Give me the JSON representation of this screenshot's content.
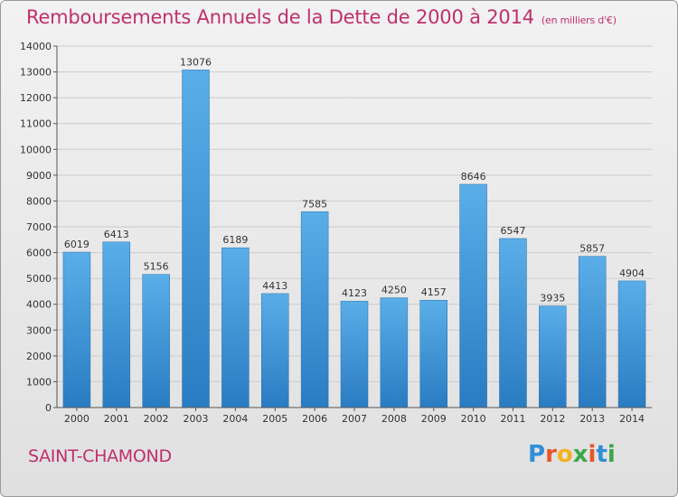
{
  "title": "Remboursements Annuels de la Dette de 2000 à 2014",
  "unit_note": "(en milliers d'€)",
  "city": "SAINT-CHAMOND",
  "logo": {
    "text": "Proxiti",
    "letters": [
      {
        "char": "P",
        "color": "#2f8fd8"
      },
      {
        "char": "r",
        "color": "#e8562a"
      },
      {
        "char": "o",
        "color": "#f2b21f"
      },
      {
        "char": "x",
        "color": "#3aa84a"
      },
      {
        "char": "i",
        "color": "#e8562a"
      },
      {
        "char": "t",
        "color": "#2f8fd8"
      },
      {
        "char": "i",
        "color": "#3aa84a"
      }
    ]
  },
  "colors": {
    "title": "#c0306a",
    "bar_top": "#5aaee8",
    "bar_bottom": "#2a7cc2",
    "grid": "#cccccc",
    "axis": "#555555"
  },
  "chart_data": {
    "type": "bar",
    "categories": [
      "2000",
      "2001",
      "2002",
      "2003",
      "2004",
      "2005",
      "2006",
      "2007",
      "2008",
      "2009",
      "2010",
      "2011",
      "2012",
      "2013",
      "2014"
    ],
    "values": [
      6019,
      6413,
      5156,
      13076,
      6189,
      4413,
      7585,
      4123,
      4250,
      4157,
      8646,
      6547,
      3935,
      5857,
      4904
    ],
    "ylim": [
      0,
      14000
    ],
    "yticks": [
      0,
      1000,
      2000,
      3000,
      4000,
      5000,
      6000,
      7000,
      8000,
      9000,
      10000,
      11000,
      12000,
      13000,
      14000
    ],
    "grid": true,
    "data_labels": true
  }
}
